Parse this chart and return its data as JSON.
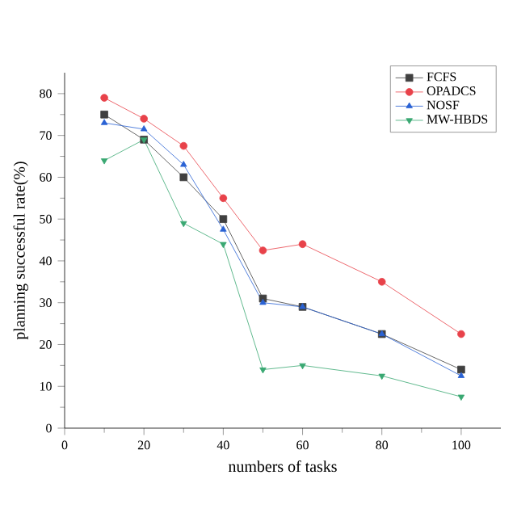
{
  "chart_data": {
    "type": "line",
    "xlabel": "numbers of tasks",
    "ylabel": "planning successful rate(%)",
    "x": [
      10,
      20,
      30,
      40,
      50,
      60,
      80,
      100
    ],
    "series": [
      {
        "name": "FCFS",
        "color": "#404040",
        "marker": "square",
        "values": [
          75,
          69,
          60,
          50,
          31,
          29,
          22.5,
          14
        ]
      },
      {
        "name": "OPADCS",
        "color": "#e8424a",
        "marker": "circle",
        "values": [
          79,
          74,
          67.5,
          55,
          42.5,
          44,
          35,
          22.5
        ]
      },
      {
        "name": "NOSF",
        "color": "#2a62d4",
        "marker": "triangle",
        "values": [
          73,
          71.5,
          63,
          47.5,
          30,
          29,
          22.5,
          12.5
        ]
      },
      {
        "name": "MW-HBDS",
        "color": "#3aa872",
        "marker": "triangle-down",
        "values": [
          64,
          69,
          49,
          44,
          14,
          15,
          12.5,
          7.5
        ]
      }
    ],
    "xlim": [
      0,
      110
    ],
    "xticks": [
      0,
      20,
      40,
      60,
      80,
      100
    ],
    "ylim": [
      0,
      85
    ],
    "yticks": [
      0,
      10,
      20,
      30,
      40,
      50,
      60,
      70,
      80
    ],
    "legend": "top right",
    "grid": false,
    "line_style": "solid"
  }
}
